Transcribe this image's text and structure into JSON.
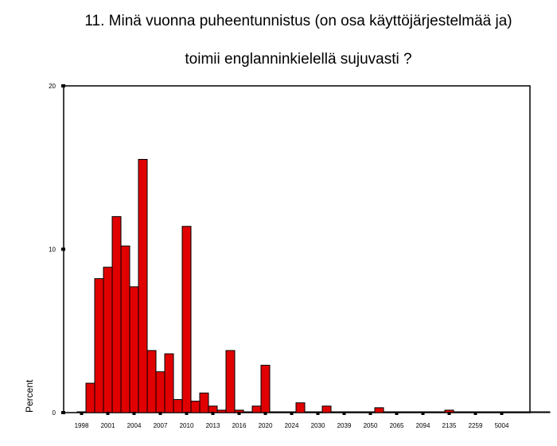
{
  "chart_data": {
    "type": "bar",
    "title_lines": [
      "11. Minä vuonna puheentunnistus (on osa käyttöjärjestelmää ja)",
      "toimii englanninkielellä sujuvasti ?"
    ],
    "xlabel": "",
    "ylabel": "Percent",
    "ylim": [
      0,
      20
    ],
    "yticks": [
      "0",
      "10",
      "20"
    ],
    "xtick_labels": [
      "1998",
      "2001",
      "2004",
      "2007",
      "2010",
      "2013",
      "2016",
      "2020",
      "2024",
      "2030",
      "2039",
      "2050",
      "2065",
      "2094",
      "2135",
      "2259",
      "5004"
    ],
    "values": [
      0.05,
      1.8,
      8.2,
      8.9,
      12.0,
      10.2,
      7.7,
      15.5,
      3.8,
      2.5,
      3.6,
      0.8,
      11.4,
      0.7,
      1.2,
      0.4,
      0.15,
      3.8,
      0.15,
      0.05,
      0.4,
      2.9,
      0.05,
      0.05,
      0.05,
      0.6,
      0.05,
      0.05,
      0.4,
      0.05,
      0.05,
      0.05,
      0.05,
      0.05,
      0.3,
      0.05,
      0.05,
      0.05,
      0.05,
      0.05,
      0.05,
      0.05,
      0.15,
      0.05,
      0.05,
      0.05,
      0.05,
      0.05,
      0.05,
      0.05,
      0.05,
      0.05,
      0.05,
      0.05
    ],
    "bar_color": "#e00000",
    "grid": false,
    "legend": "none"
  }
}
